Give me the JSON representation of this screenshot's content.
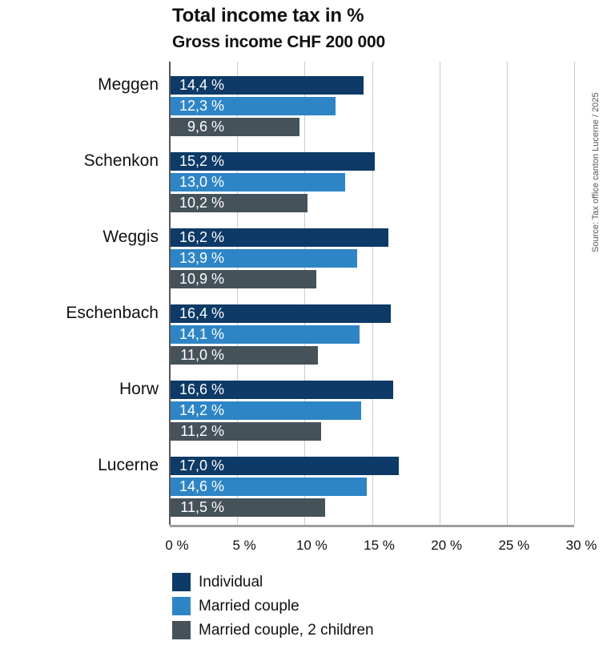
{
  "title": "Total income tax in %",
  "subtitle": "Gross income CHF 200 000",
  "source": "Source: Tax office canton Lucerne / 2025",
  "colors": {
    "individual": "#0d3a66",
    "married_couple": "#2e85c6",
    "married_couple_2_children": "#46525a",
    "gridline": "#cccccc",
    "zero_line": "#55565a",
    "axis_line": "#9e9ea0",
    "bar_label_text": "#ffffff"
  },
  "chart_data": {
    "type": "bar",
    "orientation": "horizontal",
    "title": "Total income tax in %",
    "subtitle": "Gross income CHF 200 000",
    "xlabel": "",
    "ylabel": "",
    "xlim": [
      0,
      30
    ],
    "grid": true,
    "legend_position": "bottom-left",
    "value_label_style": "inside-bar-start, right-aligned, white",
    "categories": [
      "Meggen",
      "Schenkon",
      "Weggis",
      "Eschenbach",
      "Horw",
      "Lucerne"
    ],
    "series": [
      {
        "name": "Individual",
        "slug": "individual",
        "color": "#0d3a66",
        "values": [
          14.4,
          15.2,
          16.2,
          16.4,
          16.6,
          17.0
        ],
        "labels": [
          "14,4 %",
          "15,2 %",
          "16,2 %",
          "16,4 %",
          "16,6 %",
          "17,0 %"
        ]
      },
      {
        "name": "Married couple",
        "slug": "married-couple",
        "color": "#2e85c6",
        "values": [
          12.3,
          13.0,
          13.9,
          14.1,
          14.2,
          14.6
        ],
        "labels": [
          "12,3 %",
          "13,0 %",
          "13,9 %",
          "14,1 %",
          "14,2 %",
          "14,6 %"
        ]
      },
      {
        "name": "Married couple, 2 children",
        "slug": "married-couple-2-children",
        "color": "#46525a",
        "values": [
          9.6,
          10.2,
          10.9,
          11.0,
          11.2,
          11.5
        ],
        "labels": [
          "9,6 %",
          "10,2 %",
          "10,9 %",
          "11,0 %",
          "11,2 %",
          "11,5 %"
        ]
      }
    ],
    "x_axis": {
      "max": 30,
      "ticks": [
        0,
        5,
        10,
        15,
        20,
        25,
        30
      ],
      "tick_labels": [
        "0 %",
        "5 %",
        "10 %",
        "15 %",
        "20 %",
        "25 %",
        "30 %"
      ]
    }
  }
}
